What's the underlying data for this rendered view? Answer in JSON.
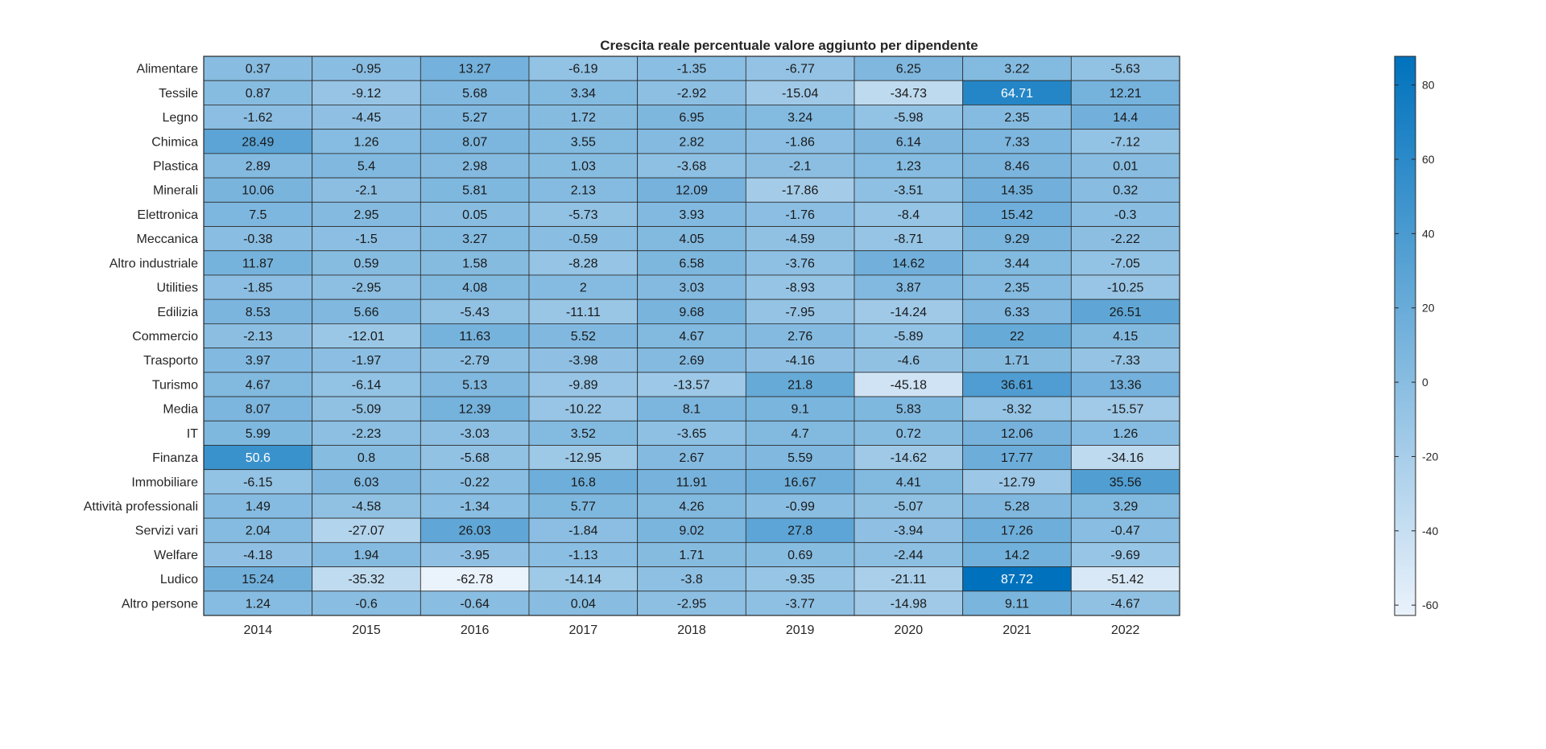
{
  "chart_data": {
    "type": "heatmap",
    "title": "Crescita reale percentuale valore aggiunto per dipendente",
    "xlabel": "",
    "ylabel": "",
    "x": [
      "2014",
      "2015",
      "2016",
      "2017",
      "2018",
      "2019",
      "2020",
      "2021",
      "2022"
    ],
    "y": [
      "Alimentare",
      "Tessile",
      "Legno",
      "Chimica",
      "Plastica",
      "Minerali",
      "Elettronica",
      "Meccanica",
      "Altro industriale",
      "Utilities",
      "Edilizia",
      "Commercio",
      "Trasporto",
      "Turismo",
      "Media",
      "IT",
      "Finanza",
      "Immobiliare",
      "Attività professionali",
      "Servizi vari",
      "Welfare",
      "Ludico",
      "Altro persone"
    ],
    "values": [
      [
        0.37,
        -0.95,
        13.27,
        -6.19,
        -1.35,
        -6.77,
        6.25,
        3.22,
        -5.63
      ],
      [
        0.87,
        -9.12,
        5.68,
        3.34,
        -2.92,
        -15.04,
        -34.73,
        64.71,
        12.21
      ],
      [
        -1.62,
        -4.45,
        5.27,
        1.72,
        6.95,
        3.24,
        -5.98,
        2.35,
        14.4
      ],
      [
        28.49,
        1.26,
        8.07,
        3.55,
        2.82,
        -1.86,
        6.14,
        7.33,
        -7.12
      ],
      [
        2.89,
        5.4,
        2.98,
        1.03,
        -3.68,
        -2.1,
        1.23,
        8.46,
        0.01
      ],
      [
        10.06,
        -2.1,
        5.81,
        2.13,
        12.09,
        -17.86,
        -3.51,
        14.35,
        0.32
      ],
      [
        7.5,
        2.95,
        0.05,
        -5.73,
        3.93,
        -1.76,
        -8.4,
        15.42,
        -0.3
      ],
      [
        -0.38,
        -1.5,
        3.27,
        -0.59,
        4.05,
        -4.59,
        -8.71,
        9.29,
        -2.22
      ],
      [
        11.87,
        0.59,
        1.58,
        -8.28,
        6.58,
        -3.76,
        14.62,
        3.44,
        -7.05
      ],
      [
        -1.85,
        -2.95,
        4.08,
        2,
        3.03,
        -8.93,
        3.87,
        2.35,
        -10.25
      ],
      [
        8.53,
        5.66,
        -5.43,
        -11.11,
        9.68,
        -7.95,
        -14.24,
        6.33,
        26.51
      ],
      [
        -2.13,
        -12.01,
        11.63,
        5.52,
        4.67,
        2.76,
        -5.89,
        22,
        4.15
      ],
      [
        3.97,
        -1.97,
        -2.79,
        -3.98,
        2.69,
        -4.16,
        -4.6,
        1.71,
        -7.33
      ],
      [
        4.67,
        -6.14,
        5.13,
        -9.89,
        -13.57,
        21.8,
        -45.18,
        36.61,
        13.36
      ],
      [
        8.07,
        -5.09,
        12.39,
        -10.22,
        8.1,
        9.1,
        5.83,
        -8.32,
        -15.57
      ],
      [
        5.99,
        -2.23,
        -3.03,
        3.52,
        -3.65,
        4.7,
        0.72,
        12.06,
        1.26
      ],
      [
        50.6,
        0.8,
        -5.68,
        -12.95,
        2.67,
        5.59,
        -14.62,
        17.77,
        -34.16
      ],
      [
        -6.15,
        6.03,
        -0.22,
        16.8,
        11.91,
        16.67,
        4.41,
        -12.79,
        35.56
      ],
      [
        1.49,
        -4.58,
        -1.34,
        5.77,
        4.26,
        -0.99,
        -5.07,
        5.28,
        3.29
      ],
      [
        2.04,
        -27.07,
        26.03,
        -1.84,
        9.02,
        27.8,
        -3.94,
        17.26,
        -0.47
      ],
      [
        -4.18,
        1.94,
        -3.95,
        -1.13,
        1.71,
        0.69,
        -2.44,
        14.2,
        -9.69
      ],
      [
        15.24,
        -35.32,
        -62.78,
        -14.14,
        -3.8,
        -9.35,
        -21.11,
        87.72,
        -51.42
      ],
      [
        1.24,
        -0.6,
        -0.64,
        0.04,
        -2.95,
        -3.77,
        -14.98,
        9.11,
        -4.67
      ]
    ],
    "labels": [
      [
        "0.37",
        "-0.95",
        "13.27",
        "-6.19",
        "-1.35",
        "-6.77",
        "6.25",
        "3.22",
        "-5.63"
      ],
      [
        "0.87",
        "-9.12",
        "5.68",
        "3.34",
        "-2.92",
        "-15.04",
        "-34.73",
        "64.71",
        "12.21"
      ],
      [
        "-1.62",
        "-4.45",
        "5.27",
        "1.72",
        "6.95",
        "3.24",
        "-5.98",
        "2.35",
        "14.4"
      ],
      [
        "28.49",
        "1.26",
        "8.07",
        "3.55",
        "2.82",
        "-1.86",
        "6.14",
        "7.33",
        "-7.12"
      ],
      [
        "2.89",
        "5.4",
        "2.98",
        "1.03",
        "-3.68",
        "-2.1",
        "1.23",
        "8.46",
        "0.01"
      ],
      [
        "10.06",
        "-2.1",
        "5.81",
        "2.13",
        "12.09",
        "-17.86",
        "-3.51",
        "14.35",
        "0.32"
      ],
      [
        "7.5",
        "2.95",
        "0.05",
        "-5.73",
        "3.93",
        "-1.76",
        "-8.4",
        "15.42",
        "-0.3"
      ],
      [
        "-0.38",
        "-1.5",
        "3.27",
        "-0.59",
        "4.05",
        "-4.59",
        "-8.71",
        "9.29",
        "-2.22"
      ],
      [
        "11.87",
        "0.59",
        "1.58",
        "-8.28",
        "6.58",
        "-3.76",
        "14.62",
        "3.44",
        "-7.05"
      ],
      [
        "-1.85",
        "-2.95",
        "4.08",
        "2",
        "3.03",
        "-8.93",
        "3.87",
        "2.35",
        "-10.25"
      ],
      [
        "8.53",
        "5.66",
        "-5.43",
        "-11.11",
        "9.68",
        "-7.95",
        "-14.24",
        "6.33",
        "26.51"
      ],
      [
        "-2.13",
        "-12.01",
        "11.63",
        "5.52",
        "4.67",
        "2.76",
        "-5.89",
        "22",
        "4.15"
      ],
      [
        "3.97",
        "-1.97",
        "-2.79",
        "-3.98",
        "2.69",
        "-4.16",
        "-4.6",
        "1.71",
        "-7.33"
      ],
      [
        "4.67",
        "-6.14",
        "5.13",
        "-9.89",
        "-13.57",
        "21.8",
        "-45.18",
        "36.61",
        "13.36"
      ],
      [
        "8.07",
        "-5.09",
        "12.39",
        "-10.22",
        "8.1",
        "9.1",
        "5.83",
        "-8.32",
        "-15.57"
      ],
      [
        "5.99",
        "-2.23",
        "-3.03",
        "3.52",
        "-3.65",
        "4.7",
        "0.72",
        "12.06",
        "1.26"
      ],
      [
        "50.6",
        "0.8",
        "-5.68",
        "-12.95",
        "2.67",
        "5.59",
        "-14.62",
        "17.77",
        "-34.16"
      ],
      [
        "-6.15",
        "6.03",
        "-0.22",
        "16.8",
        "11.91",
        "16.67",
        "4.41",
        "-12.79",
        "35.56"
      ],
      [
        "1.49",
        "-4.58",
        "-1.34",
        "5.77",
        "4.26",
        "-0.99",
        "-5.07",
        "5.28",
        "3.29"
      ],
      [
        "2.04",
        "-27.07",
        "26.03",
        "-1.84",
        "9.02",
        "27.8",
        "-3.94",
        "17.26",
        "-0.47"
      ],
      [
        "-4.18",
        "1.94",
        "-3.95",
        "-1.13",
        "1.71",
        "0.69",
        "-2.44",
        "14.2",
        "-9.69"
      ],
      [
        "15.24",
        "-35.32",
        "-62.78",
        "-14.14",
        "-3.8",
        "-9.35",
        "-21.11",
        "87.72",
        "-51.42"
      ],
      [
        "1.24",
        "-0.6",
        "-0.64",
        "0.04",
        "-2.95",
        "-3.77",
        "-14.98",
        "9.11",
        "-4.67"
      ]
    ],
    "colorbar": {
      "range": [
        -62.78,
        87.72
      ],
      "ticks": [
        -60,
        -40,
        -20,
        0,
        20,
        40,
        60,
        80
      ],
      "tick_labels": [
        "-60",
        "-40",
        "-20",
        "0",
        "20",
        "40",
        "60",
        "80"
      ],
      "color_low": "#eaf2fb",
      "color_high": "#0072bd"
    },
    "grid": true,
    "legend": "colorbar-right"
  }
}
